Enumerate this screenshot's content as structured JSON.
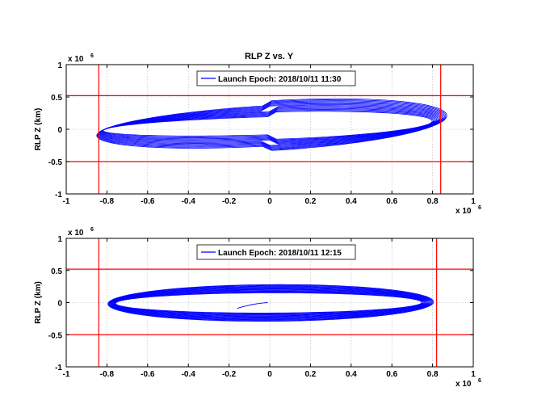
{
  "chart_data": [
    {
      "type": "line",
      "title": "RLP Z vs. Y",
      "xlabel": "",
      "ylabel": "RLP Z (km)",
      "xlim": [
        -1,
        1
      ],
      "ylim": [
        -1,
        1
      ],
      "x_multiplier": "x 10",
      "x_exponent": "6",
      "y_multiplier": "x 10",
      "y_exponent": "6",
      "xticks": [
        "-1",
        "-0.8",
        "-0.6",
        "-0.4",
        "-0.2",
        "0",
        "0.2",
        "0.4",
        "0.6",
        "0.8",
        "1"
      ],
      "yticks": [
        "1",
        "0.5",
        "0",
        "-0.5",
        "-1"
      ],
      "grid": true,
      "legend_position": "top-center",
      "series": [
        {
          "name": "Launch Epoch: 2018/10/11 11:30",
          "color": "#0000ff"
        }
      ],
      "orbit": {
        "y_min": -0.86,
        "y_max": 0.86,
        "z_min": -0.33,
        "z_max": 0.44,
        "loops": 14
      },
      "reference_lines": {
        "color": "#ff0000",
        "x": [
          -0.84,
          0.84
        ],
        "y": [
          0.52,
          -0.5
        ]
      }
    },
    {
      "type": "line",
      "title": "",
      "xlabel": "",
      "ylabel": "RLP Z (km)",
      "xlim": [
        -1,
        1
      ],
      "ylim": [
        -1,
        1
      ],
      "x_multiplier": "x 10",
      "x_exponent": "6",
      "y_multiplier": "x 10",
      "y_exponent": "6",
      "xticks": [
        "-1",
        "-0.8",
        "-0.6",
        "-0.4",
        "-0.2",
        "0",
        "0.2",
        "0.4",
        "0.6",
        "0.8",
        "1"
      ],
      "yticks": [
        "1",
        "0.5",
        "0",
        "-0.5",
        "-1"
      ],
      "grid": true,
      "legend_position": "top-center",
      "series": [
        {
          "name": "Launch Epoch: 2018/10/11 12:15",
          "color": "#0000ff"
        }
      ],
      "orbit": {
        "y_min": -0.8,
        "y_max": 0.8,
        "z_min": -0.29,
        "z_max": 0.28,
        "loops": 14
      },
      "reference_lines": {
        "color": "#ff0000",
        "x": [
          -0.84,
          0.82
        ],
        "y": [
          0.52,
          -0.5
        ]
      }
    }
  ]
}
